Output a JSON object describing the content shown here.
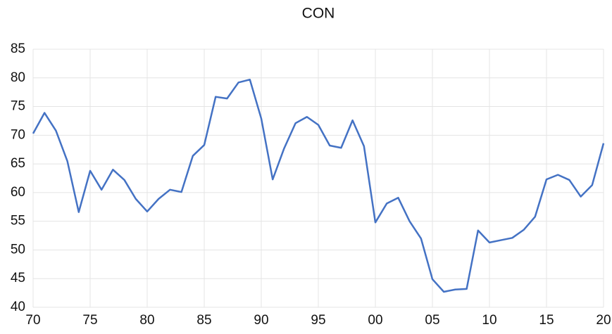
{
  "chart_data": {
    "type": "line",
    "title": "CON",
    "x": [
      1970,
      1971,
      1972,
      1973,
      1974,
      1975,
      1976,
      1977,
      1978,
      1979,
      1980,
      1981,
      1982,
      1983,
      1984,
      1985,
      1986,
      1987,
      1988,
      1989,
      1990,
      1991,
      1992,
      1993,
      1994,
      1995,
      1996,
      1997,
      1998,
      1999,
      2000,
      2001,
      2002,
      2003,
      2004,
      2005,
      2006,
      2007,
      2008,
      2009,
      2010,
      2011,
      2012,
      2013,
      2014,
      2015,
      2016,
      2017,
      2018,
      2019,
      2020
    ],
    "series": [
      {
        "name": "CON",
        "color": "#4472c4",
        "values": [
          70.3,
          73.9,
          70.8,
          65.5,
          56.6,
          63.8,
          60.5,
          64.0,
          62.2,
          58.9,
          56.7,
          58.9,
          60.5,
          60.1,
          66.4,
          68.3,
          76.7,
          76.4,
          79.2,
          79.7,
          72.9,
          62.3,
          67.7,
          72.1,
          73.2,
          71.8,
          68.2,
          67.8,
          72.6,
          68.1,
          54.8,
          58.1,
          59.1,
          55.0,
          52.0,
          44.9,
          42.7,
          43.1,
          43.2,
          53.4,
          51.3,
          51.7,
          52.1,
          53.5,
          55.8,
          62.3,
          63.1,
          62.2,
          59.3,
          61.3,
          68.6
        ]
      }
    ],
    "xlim": [
      1970,
      2020
    ],
    "xticks": [
      {
        "value": 1970,
        "label": "70"
      },
      {
        "value": 1975,
        "label": "75"
      },
      {
        "value": 1980,
        "label": "80"
      },
      {
        "value": 1985,
        "label": "85"
      },
      {
        "value": 1990,
        "label": "90"
      },
      {
        "value": 1995,
        "label": "95"
      },
      {
        "value": 2000,
        "label": "00"
      },
      {
        "value": 2005,
        "label": "05"
      },
      {
        "value": 2010,
        "label": "10"
      },
      {
        "value": 2015,
        "label": "15"
      },
      {
        "value": 2020,
        "label": "20"
      }
    ],
    "ylim": [
      40,
      85
    ],
    "yticks": [
      40,
      45,
      50,
      55,
      60,
      65,
      70,
      75,
      80,
      85
    ],
    "grid": true
  }
}
